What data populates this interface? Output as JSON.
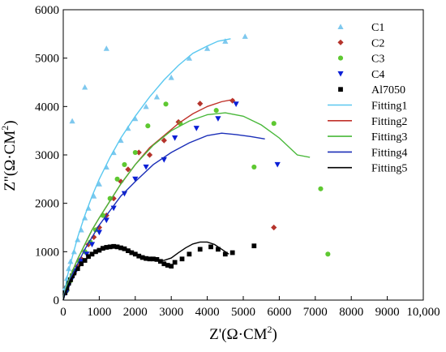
{
  "chart_data": {
    "type": "scatter",
    "xlabel": "Z'(Ω·CM",
    "xlabel_sup": "2",
    "xlabel_end": ")",
    "ylabel": "Z''(Ω·CM",
    "ylabel_sup": "2",
    "ylabel_end": ")",
    "xlim": [
      0,
      10000
    ],
    "ylim": [
      0,
      6000
    ],
    "xticks": [
      0,
      1000,
      2000,
      3000,
      4000,
      5000,
      6000,
      7000,
      8000,
      9000,
      10000
    ],
    "xtick_labels": [
      "0",
      "1000",
      "2000",
      "3000",
      "4000",
      "5000",
      "6000",
      "7000",
      "8000",
      "9000",
      "10,000"
    ],
    "yticks": [
      0,
      1000,
      2000,
      3000,
      4000,
      5000,
      6000
    ],
    "ytick_labels": [
      "0",
      "1000",
      "2000",
      "3000",
      "4000",
      "5000",
      "6000"
    ],
    "legend_position": "top-right",
    "series": [
      {
        "name": "C1",
        "kind": "scatter",
        "marker": "triangle-up",
        "color": "#7ec8ee",
        "x": [
          50,
          100,
          150,
          200,
          300,
          400,
          500,
          600,
          700,
          850,
          1000,
          1200,
          1400,
          1600,
          1800,
          2000,
          2300,
          2600,
          3000,
          3500,
          4000,
          4500,
          5050,
          600,
          1200,
          250
        ],
        "y": [
          250,
          450,
          650,
          800,
          1000,
          1250,
          1450,
          1700,
          1900,
          2150,
          2400,
          2750,
          3050,
          3300,
          3550,
          3750,
          4000,
          4200,
          4600,
          5000,
          5200,
          5350,
          5450,
          4400,
          5200,
          3700
        ]
      },
      {
        "name": "C2",
        "kind": "scatter",
        "marker": "diamond",
        "color": "#b5342c",
        "x": [
          100,
          200,
          300,
          400,
          500,
          600,
          700,
          850,
          1000,
          1200,
          1400,
          1600,
          1800,
          2100,
          2400,
          2800,
          3200,
          3800,
          4700,
          5850
        ],
        "y": [
          200,
          400,
          550,
          700,
          850,
          1000,
          1150,
          1300,
          1500,
          1750,
          2100,
          2450,
          2700,
          3050,
          3000,
          3300,
          3680,
          4060,
          4120,
          1500
        ]
      },
      {
        "name": "C3",
        "kind": "scatter",
        "marker": "circle",
        "color": "#5ec831",
        "x": [
          100,
          200,
          300,
          450,
          600,
          750,
          900,
          1100,
          1300,
          1500,
          1700,
          2000,
          2350,
          2850,
          3250,
          4250,
          5300,
          5850,
          7150,
          7350
        ],
        "y": [
          200,
          400,
          600,
          800,
          1000,
          1200,
          1450,
          1750,
          2100,
          2500,
          2800,
          3050,
          3600,
          4050,
          3650,
          3920,
          2750,
          3650,
          2300,
          950
        ]
      },
      {
        "name": "C4",
        "kind": "scatter",
        "marker": "triangle-down",
        "color": "#0a1fd6",
        "x": [
          80,
          150,
          250,
          350,
          500,
          650,
          800,
          1000,
          1200,
          1400,
          1700,
          2000,
          2300,
          2800,
          3100,
          3700,
          4300,
          4800,
          5950
        ],
        "y": [
          150,
          300,
          450,
          600,
          800,
          950,
          1150,
          1400,
          1650,
          1900,
          2200,
          2500,
          2750,
          2900,
          3350,
          3550,
          3750,
          4050,
          2800
        ]
      },
      {
        "name": "Al7050",
        "kind": "scatter",
        "marker": "square",
        "color": "#000000",
        "x": [
          50,
          100,
          150,
          200,
          250,
          300,
          400,
          500,
          600,
          700,
          800,
          900,
          1000,
          1100,
          1200,
          1300,
          1400,
          1500,
          1600,
          1700,
          1800,
          1900,
          2000,
          2100,
          2200,
          2300,
          2400,
          2500,
          2600,
          2700,
          2800,
          2900,
          3000,
          3100,
          3300,
          3500,
          3800,
          4100,
          4300,
          4500,
          4700,
          5300
        ],
        "y": [
          150,
          250,
          350,
          420,
          500,
          560,
          650,
          750,
          820,
          900,
          950,
          1000,
          1030,
          1070,
          1090,
          1100,
          1110,
          1100,
          1080,
          1060,
          1020,
          980,
          950,
          910,
          880,
          860,
          850,
          850,
          840,
          800,
          750,
          720,
          700,
          780,
          850,
          950,
          1050,
          1100,
          1050,
          950,
          980,
          1120
        ]
      },
      {
        "name": "Fitting1",
        "kind": "line",
        "color": "#5ac8f0",
        "x": [
          0,
          100,
          200,
          400,
          600,
          800,
          1000,
          1300,
          1600,
          2000,
          2400,
          2800,
          3200,
          3600,
          4000,
          4300,
          4650
        ],
        "y": [
          0,
          450,
          750,
          1300,
          1750,
          2150,
          2500,
          2950,
          3350,
          3800,
          4200,
          4550,
          4850,
          5100,
          5250,
          5350,
          5400
        ]
      },
      {
        "name": "Fitting2",
        "kind": "line",
        "color": "#c0322a",
        "x": [
          0,
          100,
          200,
          400,
          600,
          800,
          1000,
          1300,
          1600,
          2000,
          2400,
          2800,
          3200,
          3600,
          4000,
          4400,
          4750
        ],
        "y": [
          0,
          300,
          500,
          850,
          1150,
          1450,
          1700,
          2050,
          2400,
          2800,
          3150,
          3400,
          3650,
          3850,
          4000,
          4100,
          4150
        ]
      },
      {
        "name": "Fitting3",
        "kind": "line",
        "color": "#49b83a",
        "x": [
          0,
          100,
          200,
          400,
          600,
          800,
          1000,
          1300,
          1600,
          2000,
          2500,
          3000,
          3500,
          4000,
          4500,
          5000,
          5500,
          6000,
          6500,
          6850
        ],
        "y": [
          0,
          300,
          500,
          850,
          1150,
          1450,
          1700,
          2050,
          2400,
          2800,
          3200,
          3500,
          3700,
          3830,
          3870,
          3800,
          3620,
          3350,
          3000,
          2950
        ]
      },
      {
        "name": "Fitting4",
        "kind": "line",
        "color": "#1b2fb8",
        "x": [
          0,
          100,
          200,
          400,
          600,
          800,
          1000,
          1300,
          1600,
          2000,
          2500,
          3000,
          3500,
          4000,
          4400,
          4800,
          5200,
          5600
        ],
        "y": [
          0,
          250,
          450,
          750,
          1050,
          1300,
          1550,
          1850,
          2150,
          2450,
          2800,
          3050,
          3250,
          3400,
          3450,
          3420,
          3380,
          3330
        ]
      },
      {
        "name": "Fitting5",
        "kind": "line",
        "color": "#000000",
        "x": [
          0,
          50,
          100,
          200,
          400,
          600,
          800,
          1000,
          1200,
          1400,
          1600,
          1800,
          2000,
          2200,
          2400,
          2600,
          2800,
          3000,
          3200,
          3400,
          3600,
          3800,
          4000,
          4200,
          4400,
          4600
        ],
        "y": [
          0,
          150,
          250,
          420,
          650,
          820,
          950,
          1050,
          1100,
          1120,
          1100,
          1050,
          970,
          900,
          850,
          820,
          820,
          870,
          980,
          1080,
          1160,
          1200,
          1200,
          1150,
          1050,
          950
        ]
      }
    ]
  }
}
